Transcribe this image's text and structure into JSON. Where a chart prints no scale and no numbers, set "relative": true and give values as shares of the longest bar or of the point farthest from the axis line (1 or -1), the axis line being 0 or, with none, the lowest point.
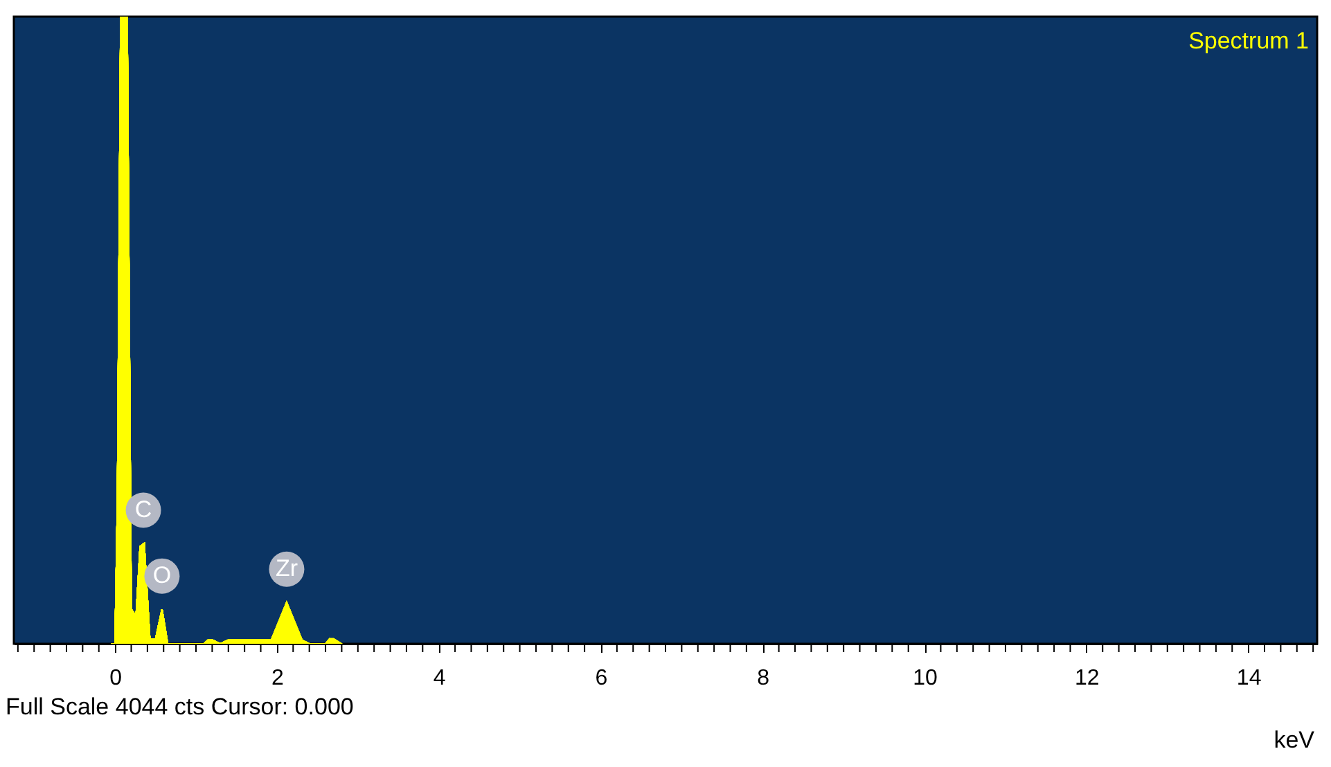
{
  "chart_data": {
    "type": "area",
    "relative": true,
    "xlabel": "keV",
    "annotations": [
      "Spectrum 1",
      "Full Scale 4044 cts Cursor: 0.000",
      {
        "text": "C",
        "x": 0.35,
        "y": 0.16
      },
      {
        "text": "O",
        "x": 0.58,
        "y": 0.055
      },
      {
        "text": "Zr",
        "x": 2.12,
        "y": 0.066
      }
    ],
    "x": [
      -0.05,
      0.0,
      0.03,
      0.07,
      0.15,
      0.2,
      0.26,
      0.31,
      0.36,
      0.43,
      0.5,
      0.58,
      0.65,
      1.1,
      1.15,
      1.2,
      1.3,
      1.4,
      1.5,
      1.6,
      1.9,
      1.93,
      2.12,
      2.31,
      2.4,
      2.6,
      2.65,
      2.7,
      2.8
    ],
    "series": [
      {
        "color": "#ffff00",
        "values": [
          0,
          0,
          0.23,
          1,
          1,
          0.055,
          0.044,
          0.155,
          0.16,
          0.007,
          0.007,
          0.055,
          0,
          0,
          0.006,
          0.006,
          0,
          0.006,
          0.006,
          0.006,
          0.006,
          0.006,
          0.066,
          0.006,
          0,
          0,
          0.008,
          0.008,
          0
        ]
      }
    ],
    "xlim": [
      -1.25,
      14.85
    ],
    "xticks": [
      0,
      2,
      4,
      6,
      8,
      10,
      12,
      14,
      {
        "value": -1.2,
        "label": null
      },
      {
        "value": -1.0,
        "label": null
      },
      {
        "value": -0.8,
        "label": null
      },
      {
        "value": -0.6,
        "label": null
      },
      {
        "value": -0.4,
        "label": null
      },
      {
        "value": -0.2,
        "label": null
      },
      {
        "value": 0.2,
        "label": null
      },
      {
        "value": 0.4,
        "label": null
      },
      {
        "value": 0.6,
        "label": null
      },
      {
        "value": 0.8,
        "label": null
      },
      {
        "value": 1.0,
        "label": null
      },
      {
        "value": 1.2,
        "label": null
      },
      {
        "value": 1.4,
        "label": null
      },
      {
        "value": 1.6,
        "label": null
      },
      {
        "value": 1.8,
        "label": null
      },
      {
        "value": 2.2,
        "label": null
      },
      {
        "value": 2.4,
        "label": null
      },
      {
        "value": 2.6,
        "label": null
      },
      {
        "value": 2.8,
        "label": null
      },
      {
        "value": 3.0,
        "label": null
      },
      {
        "value": 3.2,
        "label": null
      },
      {
        "value": 3.4,
        "label": null
      },
      {
        "value": 3.6,
        "label": null
      },
      {
        "value": 3.8,
        "label": null
      },
      {
        "value": 4.2,
        "label": null
      },
      {
        "value": 4.4,
        "label": null
      },
      {
        "value": 4.6,
        "label": null
      },
      {
        "value": 4.8,
        "label": null
      },
      {
        "value": 5.0,
        "label": null
      },
      {
        "value": 5.2,
        "label": null
      },
      {
        "value": 5.4,
        "label": null
      },
      {
        "value": 5.6,
        "label": null
      },
      {
        "value": 5.8,
        "label": null
      },
      {
        "value": 6.2,
        "label": null
      },
      {
        "value": 6.4,
        "label": null
      },
      {
        "value": 6.6,
        "label": null
      },
      {
        "value": 6.8,
        "label": null
      },
      {
        "value": 7.0,
        "label": null
      },
      {
        "value": 7.2,
        "label": null
      },
      {
        "value": 7.4,
        "label": null
      },
      {
        "value": 7.6,
        "label": null
      },
      {
        "value": 7.8,
        "label": null
      },
      {
        "value": 8.2,
        "label": null
      },
      {
        "value": 8.4,
        "label": null
      },
      {
        "value": 8.6,
        "label": null
      },
      {
        "value": 8.8,
        "label": null
      },
      {
        "value": 9.0,
        "label": null
      },
      {
        "value": 9.2,
        "label": null
      },
      {
        "value": 9.4,
        "label": null
      },
      {
        "value": 9.6,
        "label": null
      },
      {
        "value": 9.8,
        "label": null
      },
      {
        "value": 10.2,
        "label": null
      },
      {
        "value": 10.4,
        "label": null
      },
      {
        "value": 10.6,
        "label": null
      },
      {
        "value": 10.8,
        "label": null
      },
      {
        "value": 11.0,
        "label": null
      },
      {
        "value": 11.2,
        "label": null
      },
      {
        "value": 11.4,
        "label": null
      },
      {
        "value": 11.6,
        "label": null
      },
      {
        "value": 11.8,
        "label": null
      },
      {
        "value": 12.2,
        "label": null
      },
      {
        "value": 12.4,
        "label": null
      },
      {
        "value": 12.6,
        "label": null
      },
      {
        "value": 12.8,
        "label": null
      },
      {
        "value": 13.0,
        "label": null
      },
      {
        "value": 13.2,
        "label": null
      },
      {
        "value": 13.4,
        "label": null
      },
      {
        "value": 13.6,
        "label": null
      },
      {
        "value": 13.8,
        "label": null
      },
      {
        "value": 14.2,
        "label": null
      },
      {
        "value": 14.4,
        "label": null
      },
      {
        "value": 14.6,
        "label": null
      },
      {
        "value": 14.8,
        "label": null
      }
    ],
    "grid": false
  }
}
